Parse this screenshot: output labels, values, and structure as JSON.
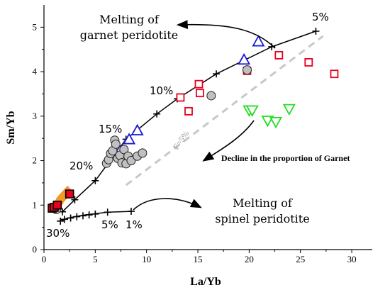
{
  "chart_data": {
    "type": "scatter",
    "xlabel": "La/Yb",
    "ylabel": "Sm/Yb",
    "xlim": [
      0,
      32
    ],
    "ylim": [
      0,
      5.5
    ],
    "xticks": [
      "0",
      "5",
      "10",
      "15",
      "20",
      "25",
      "30"
    ],
    "yticks": [
      "0",
      "1",
      "2",
      "3",
      "4",
      "5"
    ],
    "grid": false,
    "series": [
      {
        "marker": "square-red-open",
        "color": "#e8001c",
        "points": [
          [
            13.3,
            3.42
          ],
          [
            14.1,
            3.11
          ],
          [
            15.1,
            3.72
          ],
          [
            15.2,
            3.52
          ],
          [
            19.8,
            4.02
          ],
          [
            22.9,
            4.37
          ],
          [
            25.8,
            4.21
          ],
          [
            28.3,
            3.95
          ]
        ]
      },
      {
        "marker": "triangle-blue-open",
        "color": "#1a1adb",
        "points": [
          [
            7.4,
            2.21
          ],
          [
            8.3,
            2.47
          ],
          [
            9.1,
            2.67
          ],
          [
            19.5,
            4.26
          ],
          [
            20.9,
            4.67
          ]
        ]
      },
      {
        "marker": "triangle-down-green-open",
        "color": "#22dd22",
        "points": [
          [
            20.0,
            3.14
          ],
          [
            20.3,
            3.14
          ],
          [
            21.8,
            2.91
          ],
          [
            22.6,
            2.88
          ],
          [
            23.9,
            3.17
          ]
        ]
      },
      {
        "marker": "circle-gray",
        "color": "#c0c0c0",
        "points": [
          [
            6.1,
            1.94
          ],
          [
            6.3,
            2.02
          ],
          [
            6.5,
            2.16
          ],
          [
            6.7,
            2.22
          ],
          [
            6.9,
            2.46
          ],
          [
            7.0,
            2.37
          ],
          [
            7.2,
            2.05
          ],
          [
            7.4,
            2.12
          ],
          [
            7.6,
            1.95
          ],
          [
            7.8,
            2.25
          ],
          [
            8.0,
            1.93
          ],
          [
            8.2,
            2.1
          ],
          [
            8.5,
            2.0
          ],
          [
            9.1,
            2.1
          ],
          [
            9.6,
            2.17
          ],
          [
            16.3,
            3.46
          ],
          [
            19.8,
            4.04
          ],
          [
            1.2,
            0.9
          ]
        ]
      },
      {
        "marker": "diamond-orange",
        "color": "#f29a26",
        "points": [
          [
            1.4,
            1.05
          ],
          [
            1.7,
            1.15
          ],
          [
            1.9,
            1.2
          ],
          [
            2.1,
            1.25
          ],
          [
            2.3,
            1.3
          ]
        ]
      },
      {
        "marker": "square-red-filled",
        "color": "#e8001c",
        "points": [
          [
            0.8,
            0.93
          ],
          [
            1.0,
            0.95
          ],
          [
            1.3,
            1.0
          ],
          [
            2.5,
            1.25
          ]
        ]
      }
    ],
    "melting_curves": [
      {
        "points": [
          [
            1.8,
            0.85
          ],
          [
            3.0,
            1.12
          ],
          [
            5.0,
            1.55
          ],
          [
            8.0,
            2.48
          ],
          [
            11.0,
            3.05
          ],
          [
            13.0,
            3.39
          ],
          [
            16.8,
            3.95
          ],
          [
            22.2,
            4.56
          ],
          [
            26.5,
            4.91
          ]
        ],
        "ticks": [
          [
            1.8,
            0.85
          ],
          [
            3.0,
            1.12
          ],
          [
            5.0,
            1.55
          ],
          [
            8.0,
            2.48
          ],
          [
            11.0,
            3.05
          ],
          [
            13.0,
            3.39
          ],
          [
            16.8,
            3.95
          ],
          [
            22.2,
            4.56
          ],
          [
            26.5,
            4.91
          ]
        ]
      },
      {
        "points": [
          [
            1.6,
            0.64
          ],
          [
            2.2,
            0.7
          ],
          [
            3.0,
            0.74
          ],
          [
            4.0,
            0.78
          ],
          [
            6.2,
            0.84
          ],
          [
            8.5,
            0.86
          ]
        ],
        "ticks": [
          [
            1.6,
            0.64
          ],
          [
            2.0,
            0.68
          ],
          [
            2.6,
            0.71
          ],
          [
            3.2,
            0.74
          ],
          [
            3.8,
            0.76
          ],
          [
            4.4,
            0.78
          ],
          [
            5.0,
            0.8
          ],
          [
            6.2,
            0.84
          ],
          [
            8.5,
            0.86
          ]
        ]
      }
    ],
    "reference_line": {
      "points": [
        [
          8.0,
          1.45
        ],
        [
          27.2,
          4.8
        ]
      ],
      "label": "F=5%"
    },
    "annotations": {
      "garnet_title_1": "Melting of",
      "garnet_title_2": "garnet peridotite",
      "spinel_title_1": "Melting of",
      "spinel_title_2": "spinel peridotite",
      "decline": "Decline in the proportion of Garnet",
      "pct_5_top": "5%",
      "pct_10": "10%",
      "pct_15": "15%",
      "pct_20": "20%",
      "pct_30": "30%",
      "pct_5_bottom": "5%",
      "pct_1": "1%"
    }
  }
}
